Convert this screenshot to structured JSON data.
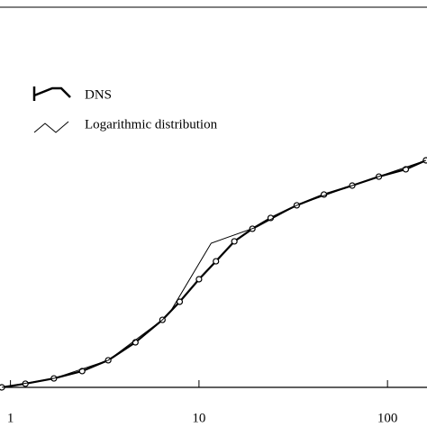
{
  "chart_data": {
    "type": "line",
    "xscale": "log",
    "xlim": [
      0.88,
      162
    ],
    "xticks": [
      1,
      10,
      100
    ],
    "ylim": [
      0,
      25
    ],
    "legend": "upper left",
    "series": [
      {
        "name": "DNS",
        "color": "#000000",
        "marker": "circle",
        "x": [
          0.9,
          1.2,
          1.7,
          2.4,
          3.3,
          4.6,
          6.4,
          7.9,
          10,
          12.3,
          15.4,
          19.2,
          24,
          33,
          46,
          65,
          90,
          125,
          160
        ],
        "values": [
          0,
          0.24,
          0.59,
          1.07,
          1.78,
          2.96,
          4.44,
          5.63,
          7.11,
          8.29,
          9.6,
          10.43,
          11.14,
          11.97,
          12.68,
          13.27,
          13.86,
          14.34,
          14.93
        ]
      },
      {
        "name": "Logarithmic distribution",
        "color": "#000000",
        "marker": "none",
        "x": [
          0.9,
          1.7,
          3.3,
          6.4,
          7.1,
          11.6,
          20.3,
          33,
          65,
          160
        ],
        "values": [
          0,
          0.59,
          1.78,
          4.44,
          5.04,
          9.48,
          10.55,
          11.97,
          13.27,
          14.93
        ]
      }
    ]
  }
}
